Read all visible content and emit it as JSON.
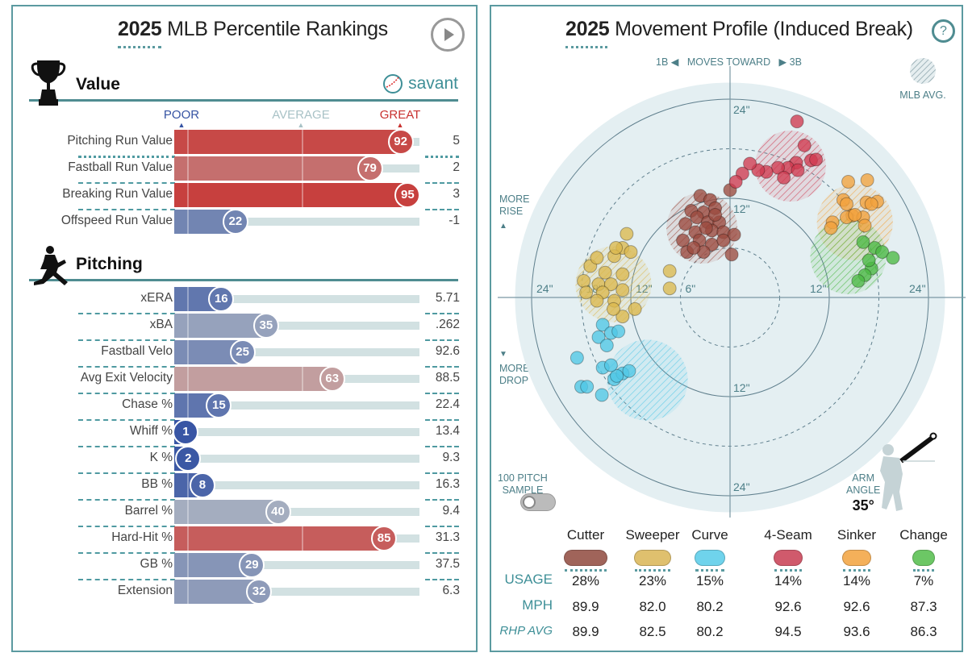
{
  "left": {
    "title_year": "2025",
    "title_rest": "MLB Percentile Rankings",
    "play_icon": "play-icon",
    "brand": "savant",
    "scale": {
      "poor": "POOR",
      "average": "AVERAGE",
      "great": "GREAT"
    },
    "colors": {
      "poor": "#3553a3",
      "average": "#a8b8c0",
      "great": "#c8312f"
    },
    "sections": [
      {
        "title": "Value",
        "icon": "trophy-icon",
        "rows": [
          {
            "label": "Pitching Run Value",
            "pct": 92,
            "value": "5"
          },
          {
            "label": "Fastball Run Value",
            "pct": 79,
            "value": "2"
          },
          {
            "label": "Breaking Run Value",
            "pct": 95,
            "value": "3"
          },
          {
            "label": "Offspeed Run Value",
            "pct": 22,
            "value": "-1"
          }
        ]
      },
      {
        "title": "Pitching",
        "icon": "pitcher-icon",
        "rows": [
          {
            "label": "xERA",
            "pct": 16,
            "value": "5.71"
          },
          {
            "label": "xBA",
            "pct": 35,
            "value": ".262"
          },
          {
            "label": "Fastball Velo",
            "pct": 25,
            "value": "92.6"
          },
          {
            "label": "Avg Exit Velocity",
            "pct": 63,
            "value": "88.5"
          },
          {
            "label": "Chase %",
            "pct": 15,
            "value": "22.4"
          },
          {
            "label": "Whiff %",
            "pct": 1,
            "value": "13.4"
          },
          {
            "label": "K %",
            "pct": 2,
            "value": "9.3"
          },
          {
            "label": "BB %",
            "pct": 8,
            "value": "16.3"
          },
          {
            "label": "Barrel %",
            "pct": 40,
            "value": "9.4"
          },
          {
            "label": "Hard-Hit %",
            "pct": 85,
            "value": "31.3"
          },
          {
            "label": "GB %",
            "pct": 29,
            "value": "37.5"
          },
          {
            "label": "Extension",
            "pct": 32,
            "value": "6.3"
          }
        ]
      }
    ]
  },
  "right": {
    "title_year": "2025",
    "title_rest": "Movement Profile (Induced Break)",
    "help_label": "?",
    "direction": {
      "left": "1B ◀",
      "middle": "MOVES TOWARD",
      "right": "▶ 3B"
    },
    "legend_mlb": "MLB AVG.",
    "more_rise": [
      "MORE",
      "RISE"
    ],
    "more_drop": [
      "MORE",
      "DROP"
    ],
    "toggle": {
      "line1": "100 PITCH",
      "line2": "SAMPLE",
      "on": false
    },
    "arm_angle": {
      "line1": "ARM",
      "line2": "ANGLE",
      "value": "35°"
    },
    "table": {
      "row_headers": {
        "usage": "USAGE",
        "mph": "MPH",
        "rhp": "RHP AVG"
      },
      "pitches": [
        {
          "name": "Cutter",
          "color": "#a0645a",
          "usage": "28%",
          "mph": "89.9",
          "rhp": "89.9"
        },
        {
          "name": "Sweeper",
          "color": "#dfc06e",
          "usage": "23%",
          "mph": "82.0",
          "rhp": "82.5"
        },
        {
          "name": "Curve",
          "color": "#6fd3ec",
          "usage": "15%",
          "mph": "80.2",
          "rhp": "80.2"
        },
        {
          "name": "4-Seam",
          "color": "#d05a6c",
          "usage": "14%",
          "mph": "92.6",
          "rhp": "94.5"
        },
        {
          "name": "Sinker",
          "color": "#f4b05a",
          "usage": "14%",
          "mph": "92.6",
          "rhp": "93.6"
        },
        {
          "name": "Change",
          "color": "#6cc765",
          "usage": "7%",
          "mph": "87.3",
          "rhp": "86.3"
        }
      ]
    }
  },
  "chart_data": {
    "type": "scatter",
    "units": "inches",
    "rings": [
      6,
      12,
      18,
      24
    ],
    "ring_labels": {
      "left": [
        "24\"",
        "18\"",
        "12\"",
        "6\""
      ],
      "right": [
        "12\"",
        "24\""
      ],
      "top": [
        "24\"",
        "12\""
      ],
      "bottom": [
        "12\"",
        "24\""
      ]
    },
    "xlim": [
      -26,
      26
    ],
    "ylim": [
      -26,
      26
    ],
    "series": [
      {
        "name": "Cutter",
        "color": "#9b4a3f",
        "avg": {
          "x": -3.4,
          "y": 8.4,
          "r": 4.1
        },
        "points": [
          [
            0,
            13
          ],
          [
            -3.6,
            12.3
          ],
          [
            -2.4,
            11.8
          ],
          [
            -4.7,
            10.5
          ],
          [
            -3.2,
            10.3
          ],
          [
            -1.8,
            10.8
          ],
          [
            -4,
            9.7
          ],
          [
            -2.7,
            9.1
          ],
          [
            -1.3,
            9.1
          ],
          [
            -5.4,
            8.9
          ],
          [
            -4.2,
            7.9
          ],
          [
            -2.2,
            8.1
          ],
          [
            -0.8,
            7.9
          ],
          [
            0.5,
            7.6
          ],
          [
            -5.7,
            6.9
          ],
          [
            -3.7,
            6.9
          ],
          [
            -2.2,
            6.4
          ],
          [
            -0.8,
            6.9
          ],
          [
            -5.2,
            5.5
          ],
          [
            -3.2,
            5.5
          ],
          [
            0.2,
            5.2
          ],
          [
            -1.8,
            10
          ],
          [
            -2.9,
            8.4
          ],
          [
            -4.4,
            6
          ]
        ]
      },
      {
        "name": "Sweeper",
        "color": "#dbb84e",
        "avg": {
          "x": -14.1,
          "y": 1.6,
          "r": 4.4
        },
        "points": [
          [
            -12.5,
            7.7
          ],
          [
            -13,
            6
          ],
          [
            -14,
            5
          ],
          [
            -12,
            5.5
          ],
          [
            -16.9,
            3.8
          ],
          [
            -15.1,
            3
          ],
          [
            -13,
            2.8
          ],
          [
            -17.7,
            2
          ],
          [
            -15.9,
            1.6
          ],
          [
            -14.4,
            1.6
          ],
          [
            -17.4,
            0.6
          ],
          [
            -13,
            0.9
          ],
          [
            -14,
            -0.4
          ],
          [
            -11.5,
            -1.4
          ],
          [
            -13,
            -2.3
          ],
          [
            -15.4,
            0.6
          ],
          [
            -16.1,
            -0.4
          ],
          [
            -14.1,
            -1.4
          ],
          [
            -7.3,
            3.2
          ],
          [
            -7.3,
            1.1
          ],
          [
            -13.8,
            6
          ],
          [
            -16.1,
            4.8
          ]
        ]
      },
      {
        "name": "Curve",
        "color": "#4fc6e6",
        "avg": {
          "x": -10,
          "y": -10,
          "r": 4.7
        },
        "points": [
          [
            -15.4,
            -3.3
          ],
          [
            -14.4,
            -4.3
          ],
          [
            -13.5,
            -4.1
          ],
          [
            -15.9,
            -4.8
          ],
          [
            -14.9,
            -5.8
          ],
          [
            -18.5,
            -7.3
          ],
          [
            -15.4,
            -8.5
          ],
          [
            -14,
            -9.9
          ],
          [
            -13,
            -9.2
          ],
          [
            -12.2,
            -8.9
          ],
          [
            -18,
            -10.8
          ],
          [
            -17.3,
            -10.8
          ],
          [
            -15.5,
            -11.8
          ],
          [
            -13.7,
            -9.5
          ],
          [
            -14.4,
            -8.2
          ]
        ]
      },
      {
        "name": "4-Seam",
        "color": "#cf3a50",
        "avg": {
          "x": 7.3,
          "y": 15.9,
          "r": 4.1
        },
        "points": [
          [
            8.1,
            21.3
          ],
          [
            9,
            18.4
          ],
          [
            9.8,
            16.6
          ],
          [
            8,
            16.3
          ],
          [
            7,
            15.7
          ],
          [
            5.8,
            15.7
          ],
          [
            4.4,
            15.2
          ],
          [
            3.4,
            15.4
          ],
          [
            2.4,
            16.2
          ],
          [
            1.5,
            15
          ],
          [
            0.7,
            14
          ],
          [
            6.5,
            14.5
          ],
          [
            8.2,
            15.4
          ],
          [
            10.4,
            16.7
          ]
        ]
      },
      {
        "name": "Sinker",
        "color": "#f2a23c",
        "avg": {
          "x": 15.1,
          "y": 9.1,
          "r": 4.4
        },
        "points": [
          [
            14.3,
            14
          ],
          [
            16.6,
            14.2
          ],
          [
            13.7,
            11.8
          ],
          [
            14.1,
            11.3
          ],
          [
            16.5,
            11.5
          ],
          [
            17.8,
            11.6
          ],
          [
            17.1,
            11.3
          ],
          [
            12.4,
            9.1
          ],
          [
            14.8,
            9.9
          ],
          [
            16.1,
            9.7
          ],
          [
            14.1,
            9.7
          ],
          [
            16.3,
            8.7
          ],
          [
            12.2,
            8.4
          ],
          [
            15.1,
            10
          ]
        ]
      },
      {
        "name": "Change",
        "color": "#4cb844",
        "avg": {
          "x": 14.3,
          "y": 5.0,
          "r": 4.4
        },
        "points": [
          [
            16.1,
            6.7
          ],
          [
            17.5,
            6
          ],
          [
            18.4,
            5.5
          ],
          [
            19.7,
            4.8
          ],
          [
            17.1,
            3.5
          ],
          [
            16.3,
            2.7
          ],
          [
            15.5,
            2
          ],
          [
            16.8,
            4.5
          ]
        ]
      }
    ]
  }
}
